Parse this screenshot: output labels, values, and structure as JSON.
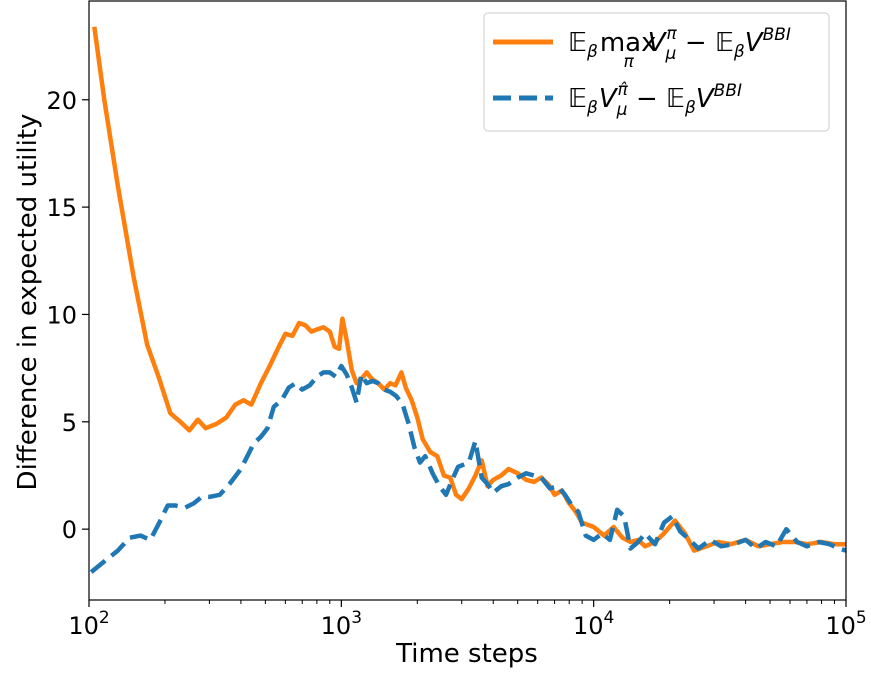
{
  "chart_data": {
    "type": "line",
    "xlabel": "Time steps",
    "ylabel": "Difference in expected utility",
    "xscale": "log",
    "xlim": [
      100,
      100000
    ],
    "ylim": [
      -3.3,
      24.6
    ],
    "grid": false,
    "legend_position": "top-right",
    "x_ticks": [
      {
        "value": 100,
        "base": "10",
        "exp": "2"
      },
      {
        "value": 1000,
        "base": "10",
        "exp": "3"
      },
      {
        "value": 10000,
        "base": "10",
        "exp": "4"
      },
      {
        "value": 100000,
        "base": "10",
        "exp": "5"
      }
    ],
    "y_ticks": [
      {
        "value": 0,
        "label": "0"
      },
      {
        "value": 5,
        "label": "5"
      },
      {
        "value": 10,
        "label": "10"
      },
      {
        "value": 15,
        "label": "15"
      },
      {
        "value": 20,
        "label": "20"
      }
    ],
    "series": [
      {
        "name": "𝔼βmaxπVμπ − 𝔼βVBBI",
        "legend": {
          "E1": "𝔼",
          "s1": "β",
          "max": "max",
          "maxsub": "π",
          "V": "V",
          "Vsub": "μ",
          "Vsup": "π",
          "minus": " − ",
          "E2": "𝔼",
          "s2": "β",
          "V2": "V",
          "V2sup": "BBI"
        },
        "color": "#ff7f0e",
        "dash": "solid",
        "points": [
          [
            105,
            23.4
          ],
          [
            115,
            20.0
          ],
          [
            130,
            16.0
          ],
          [
            150,
            11.8
          ],
          [
            170,
            8.6
          ],
          [
            190,
            7.0
          ],
          [
            210,
            5.4
          ],
          [
            230,
            5.0
          ],
          [
            250,
            4.6
          ],
          [
            270,
            5.1
          ],
          [
            290,
            4.7
          ],
          [
            320,
            4.9
          ],
          [
            350,
            5.2
          ],
          [
            380,
            5.8
          ],
          [
            410,
            6.0
          ],
          [
            440,
            5.8
          ],
          [
            480,
            6.8
          ],
          [
            520,
            7.6
          ],
          [
            560,
            8.4
          ],
          [
            600,
            9.1
          ],
          [
            640,
            9.0
          ],
          [
            680,
            9.6
          ],
          [
            720,
            9.5
          ],
          [
            760,
            9.2
          ],
          [
            800,
            9.3
          ],
          [
            850,
            9.4
          ],
          [
            900,
            9.2
          ],
          [
            940,
            8.5
          ],
          [
            980,
            8.4
          ],
          [
            1010,
            9.8
          ],
          [
            1050,
            8.8
          ],
          [
            1100,
            7.4
          ],
          [
            1150,
            6.8
          ],
          [
            1200,
            7.0
          ],
          [
            1260,
            7.3
          ],
          [
            1320,
            7.0
          ],
          [
            1400,
            6.8
          ],
          [
            1480,
            6.5
          ],
          [
            1560,
            6.8
          ],
          [
            1640,
            6.7
          ],
          [
            1730,
            7.3
          ],
          [
            1800,
            6.6
          ],
          [
            1900,
            6.0
          ],
          [
            2000,
            5.2
          ],
          [
            2100,
            4.2
          ],
          [
            2250,
            3.6
          ],
          [
            2400,
            3.4
          ],
          [
            2550,
            2.5
          ],
          [
            2700,
            2.4
          ],
          [
            2850,
            1.6
          ],
          [
            3000,
            1.4
          ],
          [
            3200,
            1.9
          ],
          [
            3400,
            2.5
          ],
          [
            3600,
            3.2
          ],
          [
            3800,
            2.0
          ],
          [
            4000,
            2.3
          ],
          [
            4300,
            2.5
          ],
          [
            4600,
            2.8
          ],
          [
            5000,
            2.6
          ],
          [
            5400,
            2.3
          ],
          [
            5800,
            2.2
          ],
          [
            6200,
            2.4
          ],
          [
            6600,
            2.1
          ],
          [
            7000,
            1.6
          ],
          [
            7500,
            1.8
          ],
          [
            8000,
            1.2
          ],
          [
            8500,
            0.8
          ],
          [
            9000,
            0.3
          ],
          [
            10000,
            0.1
          ],
          [
            11000,
            -0.3
          ],
          [
            12000,
            0.1
          ],
          [
            13000,
            -0.4
          ],
          [
            14000,
            -0.6
          ],
          [
            15000,
            -0.5
          ],
          [
            16000,
            -0.8
          ],
          [
            17500,
            -0.6
          ],
          [
            19000,
            -0.2
          ],
          [
            21000,
            0.4
          ],
          [
            23000,
            -0.2
          ],
          [
            25000,
            -1.0
          ],
          [
            28000,
            -0.8
          ],
          [
            31000,
            -0.6
          ],
          [
            35000,
            -0.7
          ],
          [
            40000,
            -0.5
          ],
          [
            45000,
            -0.8
          ],
          [
            50000,
            -0.7
          ],
          [
            56000,
            -0.6
          ],
          [
            63000,
            -0.6
          ],
          [
            70000,
            -0.7
          ],
          [
            80000,
            -0.6
          ],
          [
            90000,
            -0.7
          ],
          [
            100000,
            -0.7
          ]
        ]
      },
      {
        "name": "𝔼βVμπ̂ − 𝔼βVBBI",
        "legend": {
          "E1": "𝔼",
          "s1": "β",
          "V": "V",
          "Vsub": "μ",
          "Vsup": "π̂",
          "minus": " − ",
          "E2": "𝔼",
          "s2": "β",
          "V2": "V",
          "V2sup": "BBI"
        },
        "color": "#1f77b4",
        "dash": "dashed",
        "points": [
          [
            102,
            -2.0
          ],
          [
            115,
            -1.5
          ],
          [
            130,
            -1.0
          ],
          [
            145,
            -0.4
          ],
          [
            160,
            -0.3
          ],
          [
            175,
            -0.5
          ],
          [
            190,
            0.3
          ],
          [
            205,
            1.1
          ],
          [
            220,
            1.1
          ],
          [
            240,
            1.0
          ],
          [
            260,
            1.2
          ],
          [
            280,
            1.5
          ],
          [
            300,
            1.5
          ],
          [
            330,
            1.6
          ],
          [
            360,
            2.1
          ],
          [
            400,
            2.8
          ],
          [
            450,
            4.0
          ],
          [
            480,
            4.3
          ],
          [
            510,
            4.7
          ],
          [
            540,
            5.7
          ],
          [
            580,
            6.0
          ],
          [
            620,
            6.6
          ],
          [
            660,
            6.8
          ],
          [
            700,
            6.5
          ],
          [
            750,
            6.7
          ],
          [
            800,
            7.1
          ],
          [
            850,
            7.3
          ],
          [
            900,
            7.3
          ],
          [
            950,
            7.1
          ],
          [
            1000,
            7.6
          ],
          [
            1050,
            7.2
          ],
          [
            1100,
            6.6
          ],
          [
            1150,
            5.9
          ],
          [
            1200,
            7.2
          ],
          [
            1260,
            6.8
          ],
          [
            1330,
            6.9
          ],
          [
            1400,
            6.8
          ],
          [
            1480,
            6.5
          ],
          [
            1560,
            6.4
          ],
          [
            1650,
            6.2
          ],
          [
            1750,
            5.8
          ],
          [
            1850,
            4.9
          ],
          [
            1950,
            3.8
          ],
          [
            2050,
            3.1
          ],
          [
            2150,
            3.4
          ],
          [
            2300,
            2.6
          ],
          [
            2450,
            2.0
          ],
          [
            2600,
            1.6
          ],
          [
            2750,
            2.3
          ],
          [
            2900,
            2.9
          ],
          [
            3050,
            3.0
          ],
          [
            3200,
            3.1
          ],
          [
            3400,
            4.1
          ],
          [
            3600,
            2.4
          ],
          [
            3800,
            2.1
          ],
          [
            4000,
            1.7
          ],
          [
            4300,
            2.0
          ],
          [
            4600,
            2.1
          ],
          [
            5000,
            2.4
          ],
          [
            5400,
            2.6
          ],
          [
            5800,
            2.5
          ],
          [
            6200,
            2.4
          ],
          [
            6700,
            1.9
          ],
          [
            7200,
            2.0
          ],
          [
            7700,
            1.6
          ],
          [
            8200,
            1.1
          ],
          [
            8700,
            0.8
          ],
          [
            9300,
            -0.3
          ],
          [
            10000,
            -0.5
          ],
          [
            10800,
            -0.2
          ],
          [
            11600,
            -0.5
          ],
          [
            12400,
            0.9
          ],
          [
            13200,
            0.6
          ],
          [
            14000,
            -0.9
          ],
          [
            15000,
            -0.6
          ],
          [
            16000,
            -0.2
          ],
          [
            17500,
            -0.7
          ],
          [
            19000,
            0.3
          ],
          [
            20500,
            0.6
          ],
          [
            22000,
            -0.1
          ],
          [
            24000,
            -0.5
          ],
          [
            26000,
            -0.9
          ],
          [
            29000,
            -0.5
          ],
          [
            32000,
            -0.8
          ],
          [
            36000,
            -0.7
          ],
          [
            40000,
            -0.5
          ],
          [
            44000,
            -0.9
          ],
          [
            48000,
            -0.6
          ],
          [
            53000,
            -0.8
          ],
          [
            58000,
            0.0
          ],
          [
            64000,
            -0.6
          ],
          [
            70000,
            -0.8
          ],
          [
            78000,
            -0.6
          ],
          [
            86000,
            -0.7
          ],
          [
            94000,
            -0.9
          ],
          [
            100000,
            -1.0
          ]
        ]
      }
    ]
  }
}
